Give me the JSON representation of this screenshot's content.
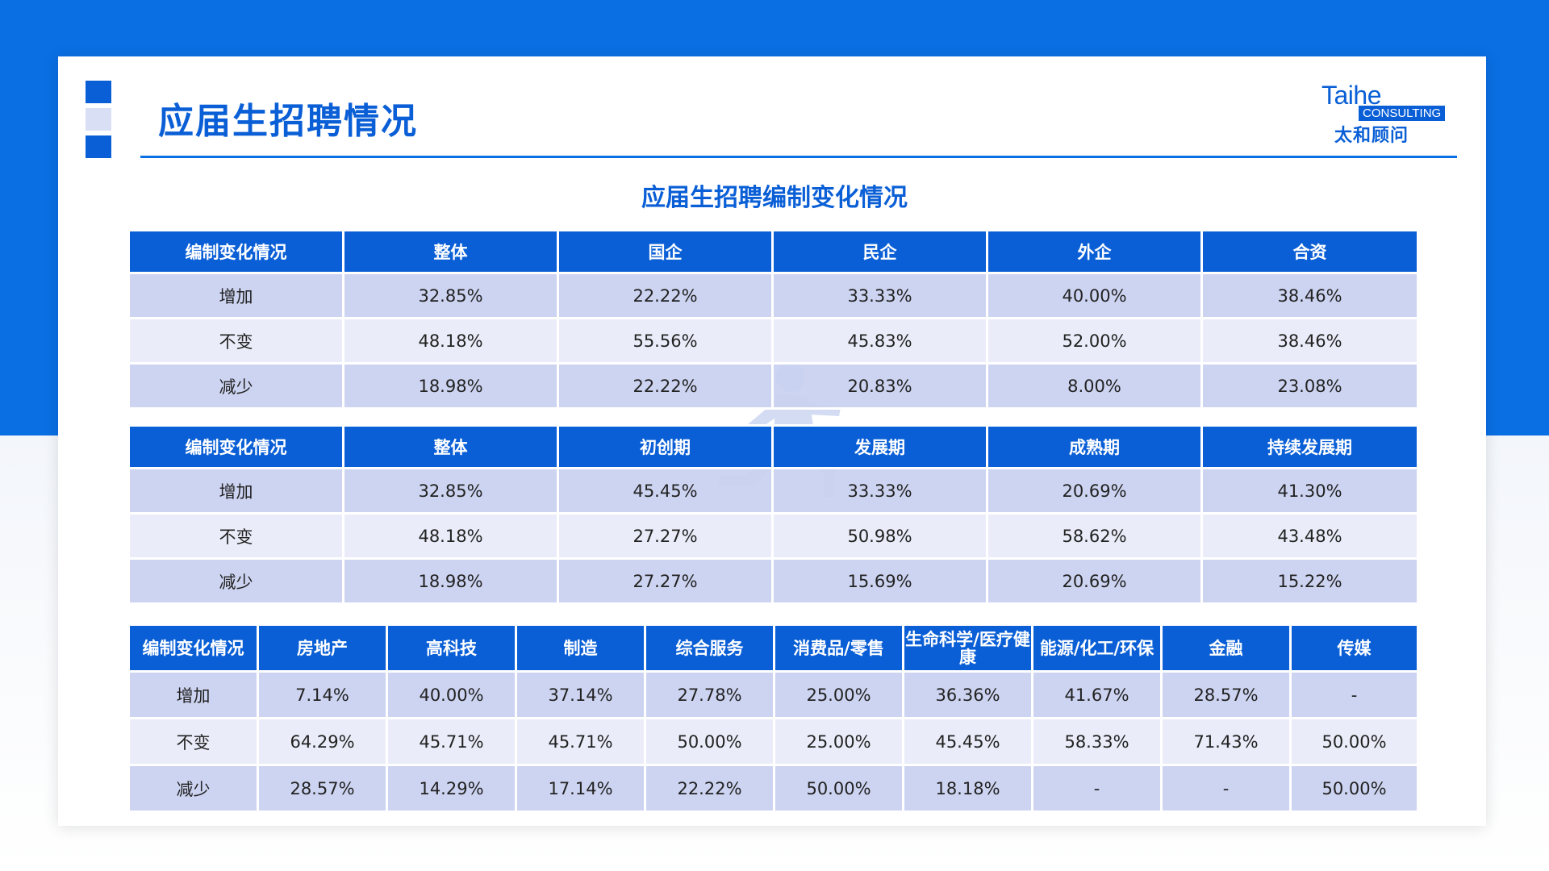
{
  "page_title": "应届生招聘情况",
  "logo": {
    "en": "Taihe",
    "consulting": "CONSULTING",
    "cn": "太和顾问"
  },
  "section_title": "应届生招聘编制变化情况",
  "colors": {
    "primary": "#0a5fd6",
    "row_dark": "#c9d0f0",
    "row_light": "#e8ebf9"
  },
  "tables": [
    {
      "headers": [
        "编制变化情况",
        "整体",
        "国企",
        "民企",
        "外企",
        "合资"
      ],
      "rows": [
        [
          "增加",
          "32.85%",
          "22.22%",
          "33.33%",
          "40.00%",
          "38.46%"
        ],
        [
          "不变",
          "48.18%",
          "55.56%",
          "45.83%",
          "52.00%",
          "38.46%"
        ],
        [
          "减少",
          "18.98%",
          "22.22%",
          "20.83%",
          "8.00%",
          "23.08%"
        ]
      ]
    },
    {
      "headers": [
        "编制变化情况",
        "整体",
        "初创期",
        "发展期",
        "成熟期",
        "持续发展期"
      ],
      "rows": [
        [
          "增加",
          "32.85%",
          "45.45%",
          "33.33%",
          "20.69%",
          "41.30%"
        ],
        [
          "不变",
          "48.18%",
          "27.27%",
          "50.98%",
          "58.62%",
          "43.48%"
        ],
        [
          "减少",
          "18.98%",
          "27.27%",
          "15.69%",
          "20.69%",
          "15.22%"
        ]
      ]
    },
    {
      "headers": [
        "编制变化情况",
        "房地产",
        "高科技",
        "制造",
        "综合服务",
        "消费品/零售",
        "生命科学/医疗健康",
        "能源/化工/环保",
        "金融",
        "传媒"
      ],
      "rows": [
        [
          "增加",
          "7.14%",
          "40.00%",
          "37.14%",
          "27.78%",
          "25.00%",
          "36.36%",
          "41.67%",
          "28.57%",
          "-"
        ],
        [
          "不变",
          "64.29%",
          "45.71%",
          "45.71%",
          "50.00%",
          "25.00%",
          "45.45%",
          "58.33%",
          "71.43%",
          "50.00%"
        ],
        [
          "减少",
          "28.57%",
          "14.29%",
          "17.14%",
          "22.22%",
          "50.00%",
          "18.18%",
          "-",
          "-",
          "50.00%"
        ]
      ]
    }
  ],
  "icons": {
    "watermark": "running-person-icon"
  }
}
